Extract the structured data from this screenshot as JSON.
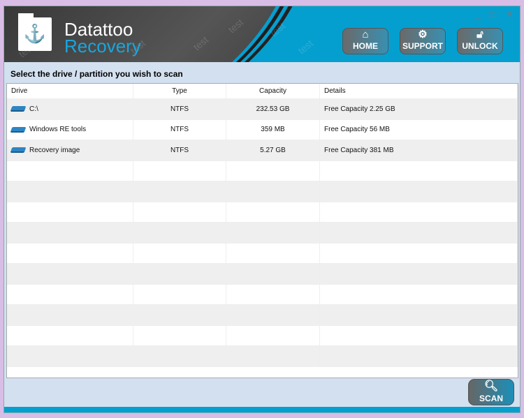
{
  "app": {
    "name_line1": "Datattoo",
    "name_line2": "Recovery",
    "watermark": "test"
  },
  "nav": [
    {
      "label": "HOME",
      "icon": "home-icon"
    },
    {
      "label": "SUPPORT",
      "icon": "gears-icon"
    },
    {
      "label": "UNLOCK",
      "icon": "unlock-icon"
    }
  ],
  "window_controls": {
    "minimize": "_",
    "maximize": "□",
    "close": "✕"
  },
  "instruction": "Select the drive / partition you wish to scan",
  "table": {
    "columns": [
      "Drive",
      "Type",
      "Capacity",
      "Details"
    ],
    "rows": [
      {
        "drive": "C:\\",
        "type": "NTFS",
        "capacity": "232.53 GB",
        "details": "Free Capacity 2.25 GB"
      },
      {
        "drive": "Windows RE tools",
        "type": "NTFS",
        "capacity": "359 MB",
        "details": "Free Capacity 56 MB"
      },
      {
        "drive": "Recovery image",
        "type": "NTFS",
        "capacity": "5.27 GB",
        "details": "Free Capacity 381 MB"
      }
    ]
  },
  "scan_label": "SCAN",
  "colors": {
    "accent": "#059fcf",
    "panel": "#d3e0ef"
  }
}
